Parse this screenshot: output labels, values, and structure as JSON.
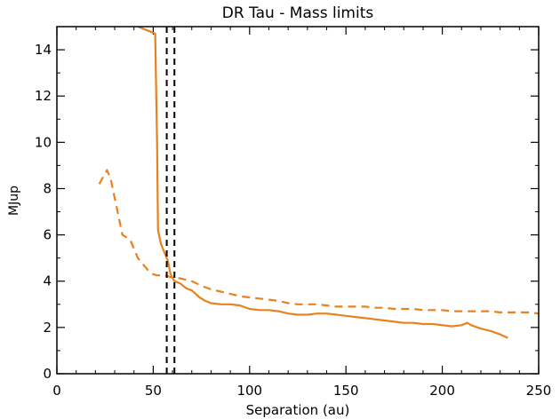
{
  "chart_data": {
    "type": "line",
    "title": "DR Tau - Mass limits",
    "xlabel": "Separation (au)",
    "ylabel": "MJup",
    "xlim": [
      0,
      250
    ],
    "ylim": [
      0,
      15
    ],
    "x_ticks": [
      0,
      50,
      100,
      150,
      200,
      250
    ],
    "y_ticks": [
      0,
      2,
      4,
      6,
      8,
      10,
      12,
      14
    ],
    "x_tick_labels": [
      "0",
      "50",
      "100",
      "150",
      "200",
      "250"
    ],
    "y_tick_labels": [
      "0",
      "2",
      "4",
      "6",
      "8",
      "10",
      "12",
      "14"
    ],
    "grid": false,
    "legend": "none",
    "series": [
      {
        "style": "solid",
        "color": "#e8821e",
        "points": [
          [
            42,
            15.0
          ],
          [
            48,
            14.8
          ],
          [
            51,
            14.7
          ],
          [
            52,
            10.0
          ],
          [
            52.5,
            6.2
          ],
          [
            54,
            5.6
          ],
          [
            56,
            5.2
          ],
          [
            57.5,
            4.9
          ],
          [
            59,
            4.3
          ],
          [
            61,
            4.0
          ],
          [
            64,
            3.9
          ],
          [
            67,
            3.7
          ],
          [
            70,
            3.6
          ],
          [
            74,
            3.3
          ],
          [
            77,
            3.15
          ],
          [
            80,
            3.05
          ],
          [
            85,
            3.0
          ],
          [
            90,
            3.0
          ],
          [
            95,
            2.95
          ],
          [
            100,
            2.8
          ],
          [
            105,
            2.75
          ],
          [
            110,
            2.75
          ],
          [
            115,
            2.7
          ],
          [
            120,
            2.6
          ],
          [
            125,
            2.55
          ],
          [
            130,
            2.55
          ],
          [
            135,
            2.6
          ],
          [
            140,
            2.6
          ],
          [
            145,
            2.55
          ],
          [
            150,
            2.5
          ],
          [
            155,
            2.45
          ],
          [
            160,
            2.4
          ],
          [
            165,
            2.35
          ],
          [
            170,
            2.3
          ],
          [
            175,
            2.25
          ],
          [
            180,
            2.2
          ],
          [
            185,
            2.2
          ],
          [
            190,
            2.15
          ],
          [
            195,
            2.15
          ],
          [
            200,
            2.1
          ],
          [
            205,
            2.05
          ],
          [
            210,
            2.1
          ],
          [
            213,
            2.2
          ],
          [
            215,
            2.1
          ],
          [
            220,
            1.95
          ],
          [
            225,
            1.85
          ],
          [
            230,
            1.7
          ],
          [
            234,
            1.55
          ]
        ]
      },
      {
        "style": "dashed",
        "color": "#e8821e",
        "points": [
          [
            22,
            8.2
          ],
          [
            24,
            8.5
          ],
          [
            26,
            8.8
          ],
          [
            28,
            8.4
          ],
          [
            30,
            7.6
          ],
          [
            32,
            6.8
          ],
          [
            34,
            6.0
          ],
          [
            36,
            5.9
          ],
          [
            38,
            5.8
          ],
          [
            40,
            5.4
          ],
          [
            42,
            5.0
          ],
          [
            44,
            4.8
          ],
          [
            46,
            4.6
          ],
          [
            48,
            4.4
          ],
          [
            50,
            4.3
          ],
          [
            52,
            4.25
          ],
          [
            54,
            4.25
          ],
          [
            56,
            4.25
          ],
          [
            58,
            4.2
          ],
          [
            60,
            4.15
          ],
          [
            62,
            4.15
          ],
          [
            65,
            4.1
          ],
          [
            70,
            4.0
          ],
          [
            75,
            3.8
          ],
          [
            80,
            3.65
          ],
          [
            85,
            3.55
          ],
          [
            90,
            3.45
          ],
          [
            95,
            3.35
          ],
          [
            100,
            3.3
          ],
          [
            105,
            3.25
          ],
          [
            110,
            3.2
          ],
          [
            115,
            3.15
          ],
          [
            120,
            3.05
          ],
          [
            125,
            3.0
          ],
          [
            130,
            3.0
          ],
          [
            135,
            3.0
          ],
          [
            140,
            2.95
          ],
          [
            145,
            2.9
          ],
          [
            150,
            2.9
          ],
          [
            155,
            2.9
          ],
          [
            160,
            2.9
          ],
          [
            165,
            2.85
          ],
          [
            170,
            2.85
          ],
          [
            175,
            2.8
          ],
          [
            180,
            2.8
          ],
          [
            185,
            2.8
          ],
          [
            190,
            2.75
          ],
          [
            195,
            2.75
          ],
          [
            200,
            2.75
          ],
          [
            205,
            2.7
          ],
          [
            210,
            2.7
          ],
          [
            215,
            2.7
          ],
          [
            220,
            2.7
          ],
          [
            225,
            2.7
          ],
          [
            230,
            2.65
          ],
          [
            235,
            2.65
          ],
          [
            240,
            2.65
          ],
          [
            245,
            2.65
          ],
          [
            250,
            2.6
          ]
        ]
      }
    ],
    "vertical_lines": [
      {
        "x": 57,
        "style": "dashed",
        "color": "#000000"
      },
      {
        "x": 61,
        "style": "dashed",
        "color": "#000000"
      }
    ]
  }
}
